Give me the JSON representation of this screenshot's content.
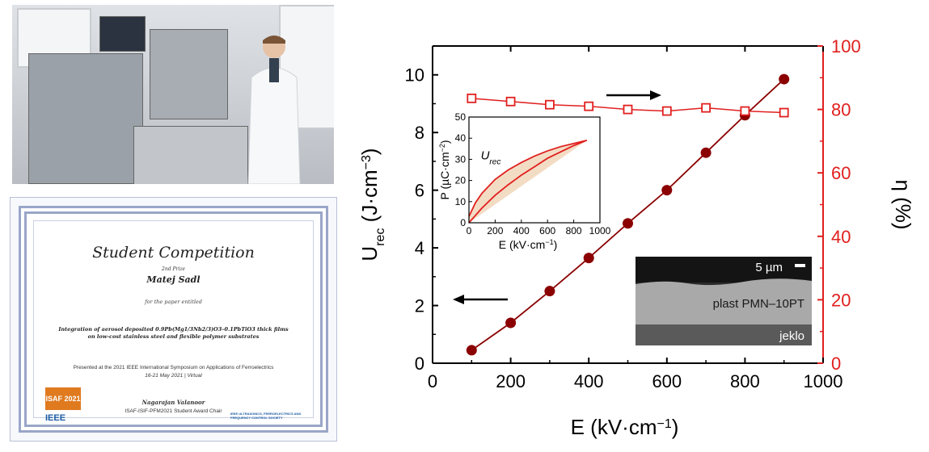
{
  "photo": {
    "icon": "lab-photo"
  },
  "certificate": {
    "title": "Student Competition",
    "prize": "2nd Prize",
    "name": "Matej Sadl",
    "for_text": "for the paper entitled",
    "paper": "Integration of aerosol deposited 0.9Pb(Mg1/3Nb2/3)O3–0.1PbTiO3 thick films on low-cost stainless steel and flexible polymer substrates",
    "presented": "Presented at the 2021 IEEE International Symposium on Applications of Ferroelectrics",
    "dates": "16-21 May 2021 | Virtual",
    "signature": "Nagarajan Valanoor",
    "chair": "ISAF-ISIF-PFM2021 Student Award Chair",
    "logo_isaf": "ISAF 2021",
    "logo_ieee": "IEEE",
    "logo_uffc": "IEEE ULTRASONICS, FERROELECTRICS AND FREQUENCY CONTROL SOCIETY"
  },
  "chart_data": [
    {
      "type": "scatter",
      "title": "",
      "xlabel": "E (kV·cm⁻¹)",
      "ylabel": "U_rec (J·cm⁻³)",
      "ylabel2": "η (%)",
      "xlim": [
        0,
        1000
      ],
      "ylim": [
        0,
        11
      ],
      "ylim2": [
        0,
        100
      ],
      "xticks": [
        0,
        200,
        400,
        600,
        800,
        1000
      ],
      "yticks": [
        0,
        2,
        4,
        6,
        8,
        10
      ],
      "yticks2": [
        0,
        20,
        40,
        60,
        80,
        100
      ],
      "grid": false,
      "colors": {
        "urec": "#8b0000",
        "eta": "#e0201f",
        "axis_right": "#e0201f"
      },
      "series": [
        {
          "axis": "left",
          "x": [
            100,
            200,
            300,
            400,
            500,
            600,
            700,
            800,
            900
          ],
          "values": [
            0.45,
            1.4,
            2.5,
            3.65,
            4.85,
            6.0,
            7.3,
            8.6,
            9.85
          ]
        },
        {
          "axis": "right",
          "x": [
            100,
            200,
            300,
            400,
            500,
            600,
            700,
            800,
            900
          ],
          "values": [
            83.5,
            82.5,
            81.5,
            81,
            80,
            79.5,
            80.5,
            79.5,
            79
          ]
        }
      ]
    },
    {
      "type": "line",
      "title": "",
      "xlabel": "E (kV·cm⁻¹)",
      "ylabel": "P (µC·cm⁻²)",
      "xlim": [
        0,
        1000
      ],
      "ylim": [
        0,
        50
      ],
      "xticks": [
        0,
        200,
        400,
        600,
        800,
        1000
      ],
      "yticks": [
        0,
        10,
        20,
        30,
        40,
        50
      ],
      "annotation": "U_rec",
      "colors": {
        "line": "#e0201f",
        "fill": "#f3dcc4"
      },
      "series": [
        {
          "x": [
            0,
            50,
            100,
            200,
            300,
            400,
            500,
            600,
            700,
            800,
            900
          ],
          "values": [
            0,
            3.5,
            7,
            13,
            18,
            22.5,
            26.5,
            30.5,
            33.5,
            36.5,
            39
          ]
        },
        {
          "x": [
            900,
            800,
            700,
            600,
            500,
            400,
            300,
            200,
            100,
            50,
            0
          ],
          "values": [
            39,
            37.5,
            36,
            34,
            31.5,
            28.5,
            25,
            20.5,
            14,
            9.5,
            3
          ]
        }
      ]
    }
  ],
  "sem": {
    "scale_label": "5 µm",
    "layer_top": "plast PMN–10PT",
    "layer_bottom": "jeklo"
  }
}
